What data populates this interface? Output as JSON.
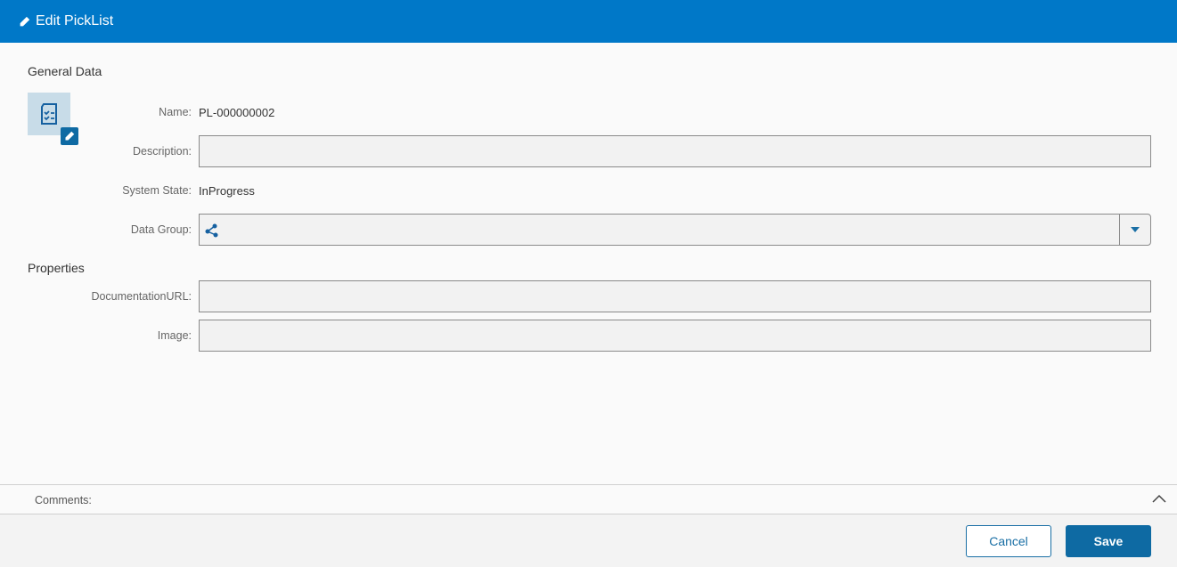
{
  "header": {
    "title": "Edit PickList",
    "icon": "pencil-icon"
  },
  "general": {
    "heading": "General Data",
    "name_label": "Name:",
    "name_value": "PL-000000002",
    "description_label": "Description:",
    "description_value": "",
    "state_label": "System State:",
    "state_value": "InProgress",
    "datagroup_label": "Data Group:",
    "datagroup_value": ""
  },
  "properties": {
    "heading": "Properties",
    "docurl_label": "DocumentationURL:",
    "docurl_value": "",
    "image_label": "Image:",
    "image_value": ""
  },
  "comments": {
    "label": "Comments:"
  },
  "footer": {
    "cancel": "Cancel",
    "save": "Save"
  },
  "colors": {
    "header": "#0078c8",
    "primary": "#0e6aa3"
  }
}
